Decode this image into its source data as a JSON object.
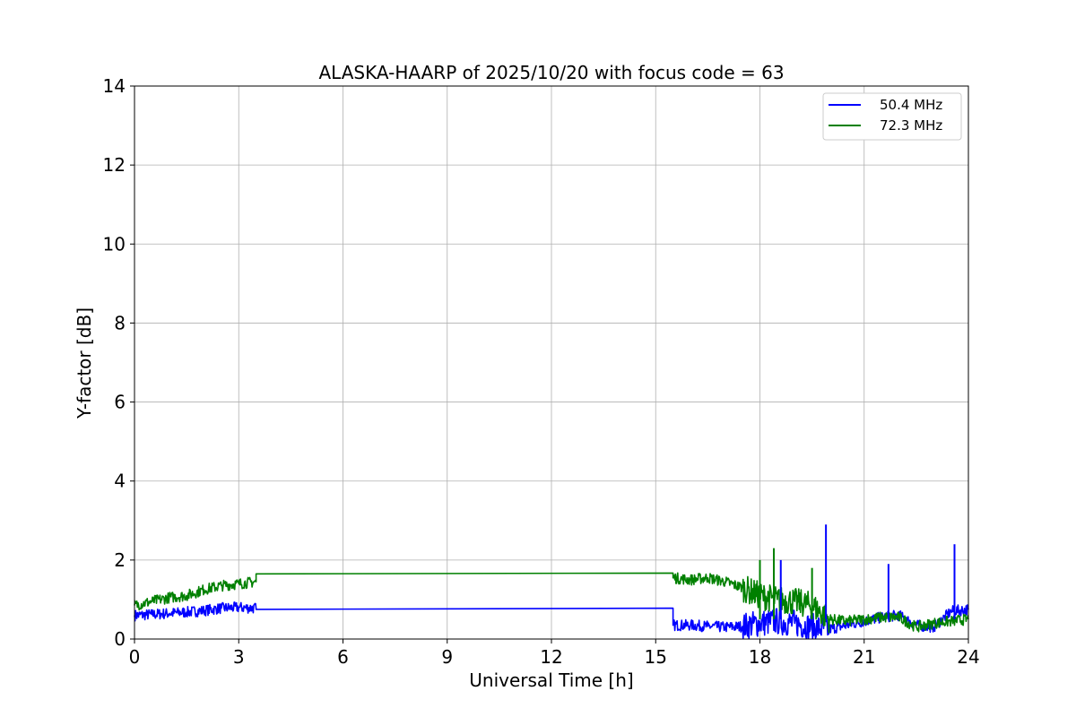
{
  "chart_data": {
    "type": "line",
    "title": "ALASKA-HAARP of 2025/10/20 with focus code = 63",
    "xlabel": "Universal Time [h]",
    "ylabel": "Y-factor [dB]",
    "xlim": [
      0,
      24
    ],
    "ylim": [
      0,
      14
    ],
    "xticks": [
      0,
      3,
      6,
      9,
      12,
      15,
      18,
      21,
      24
    ],
    "yticks": [
      0,
      2,
      4,
      6,
      8,
      10,
      12,
      14
    ],
    "grid": true,
    "legend_position": "top-right",
    "series": [
      {
        "name": "50.4 MHz",
        "color": "#0000ff",
        "x": [
          0,
          0.5,
          1,
          1.5,
          2,
          2.5,
          3,
          3.5,
          3.5,
          15.5,
          15.5,
          16,
          16.5,
          17,
          17.5,
          18,
          18.5,
          19,
          19.5,
          20,
          20.5,
          21,
          21.5,
          22,
          22.5,
          23,
          23.5,
          24
        ],
        "y": [
          0.6,
          0.62,
          0.65,
          0.68,
          0.72,
          0.78,
          0.8,
          0.78,
          0.75,
          0.78,
          0.35,
          0.35,
          0.32,
          0.3,
          0.32,
          0.4,
          0.45,
          0.4,
          0.3,
          0.25,
          0.35,
          0.45,
          0.55,
          0.6,
          0.35,
          0.3,
          0.7,
          0.75
        ]
      },
      {
        "name": "72.3 MHz",
        "color": "#008000",
        "x": [
          0,
          0.5,
          1,
          1.5,
          2,
          2.5,
          3,
          3.5,
          3.5,
          15.5,
          15.5,
          16,
          16.5,
          17,
          17.5,
          18,
          18.5,
          19,
          19.5,
          20,
          20.5,
          21,
          21.5,
          22,
          22.5,
          23,
          23.5,
          24
        ],
        "y": [
          0.85,
          0.95,
          1.05,
          1.1,
          1.25,
          1.35,
          1.4,
          1.45,
          1.65,
          1.67,
          1.55,
          1.5,
          1.55,
          1.45,
          1.3,
          1.1,
          1.0,
          0.95,
          0.85,
          0.5,
          0.45,
          0.5,
          0.55,
          0.55,
          0.3,
          0.4,
          0.45,
          0.5
        ]
      }
    ],
    "spikes": [
      {
        "series": "50.4 MHz",
        "x": 19.9,
        "y": 2.9
      },
      {
        "series": "50.4 MHz",
        "x": 21.7,
        "y": 1.9
      },
      {
        "series": "50.4 MHz",
        "x": 23.6,
        "y": 2.4
      },
      {
        "series": "50.4 MHz",
        "x": 18.6,
        "y": 2.0
      },
      {
        "series": "72.3 MHz",
        "x": 18.4,
        "y": 2.3
      },
      {
        "series": "72.3 MHz",
        "x": 19.5,
        "y": 1.8
      },
      {
        "series": "72.3 MHz",
        "x": 18.0,
        "y": 2.0
      }
    ]
  }
}
